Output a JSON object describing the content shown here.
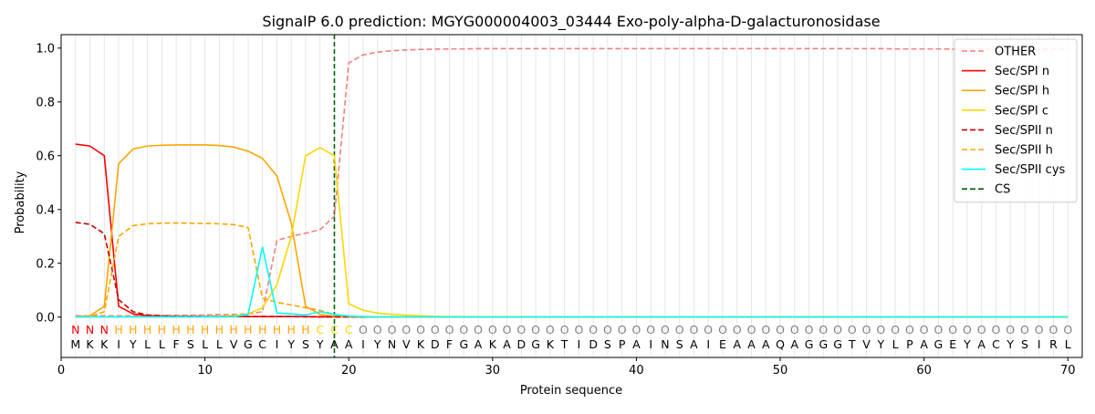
{
  "chart_data": {
    "type": "line",
    "title": "SignalP 6.0 prediction: MGYG000004003_03444 Exo-poly-alpha-D-galacturonosidase",
    "xlabel": "Protein sequence",
    "ylabel": "Probability",
    "xlim": [
      0,
      71
    ],
    "ylim": [
      -0.15,
      1.05
    ],
    "x_ticks": [
      0,
      10,
      20,
      30,
      40,
      50,
      60,
      70
    ],
    "y_ticks": [
      0.0,
      0.2,
      0.4,
      0.6,
      0.8,
      1.0
    ],
    "x_tick_labels": [
      "0",
      "10",
      "20",
      "30",
      "40",
      "50",
      "60",
      "70"
    ],
    "y_tick_labels": [
      "0.0",
      "0.2",
      "0.4",
      "0.6",
      "0.8",
      "1.0"
    ],
    "grid": "vertical lines at each residue",
    "legend_position": "top-right",
    "sequence": "MKKIYLLFSLLVGCIYSYAAIYNVKDFGAKADGKTIDSPAINSAIEAAAQAGGGTVYLPAGEYACYSIRL",
    "region_labels": "NNNHHHHHHHHHHHHHHCCCOOOOOOOOOOOOOOOOOOOOOOOOOOOOOOOOOOOOOOOOOOOOOOOOOOO",
    "region_colors": {
      "N": "#ff0000",
      "H": "#ffa500",
      "C": "#ffd700",
      "O": "#808080"
    },
    "cleavage_site": 19,
    "x": [
      1,
      2,
      3,
      4,
      5,
      6,
      7,
      8,
      9,
      10,
      11,
      12,
      13,
      14,
      15,
      16,
      17,
      18,
      19,
      20,
      21,
      22,
      23,
      24,
      25,
      26,
      27,
      28,
      29,
      30,
      31,
      32,
      33,
      34,
      35,
      36,
      37,
      38,
      39,
      40,
      41,
      42,
      43,
      44,
      45,
      46,
      47,
      48,
      49,
      50,
      51,
      52,
      53,
      54,
      55,
      56,
      57,
      58,
      59,
      60,
      61,
      62,
      63,
      64,
      65,
      66,
      67,
      68,
      69,
      70
    ],
    "series": [
      {
        "name": "OTHER",
        "color": "#f08080",
        "dash": "dashed",
        "values": [
          0.005,
          0.005,
          0.005,
          0.005,
          0.005,
          0.006,
          0.006,
          0.007,
          0.007,
          0.008,
          0.009,
          0.01,
          0.012,
          0.02,
          0.285,
          0.3,
          0.312,
          0.325,
          0.375,
          0.945,
          0.975,
          0.985,
          0.99,
          0.993,
          0.995,
          0.996,
          0.997,
          0.997,
          0.998,
          0.998,
          0.998,
          0.998,
          0.998,
          0.998,
          0.998,
          0.998,
          0.998,
          0.998,
          0.998,
          0.998,
          0.998,
          0.998,
          0.998,
          0.998,
          0.998,
          0.998,
          0.998,
          0.998,
          0.998,
          0.998,
          0.998,
          0.998,
          0.998,
          0.998,
          0.998,
          0.998,
          0.998,
          0.997,
          0.997,
          0.997,
          0.997,
          0.996,
          0.996,
          0.996,
          0.996,
          0.996,
          0.996,
          0.996,
          0.996,
          0.996
        ]
      },
      {
        "name": "Sec/SPI n",
        "color": "#ff0000",
        "dash": "solid",
        "values": [
          0.643,
          0.636,
          0.6,
          0.04,
          0.012,
          0.005,
          0.003,
          0.002,
          0.002,
          0.002,
          0.002,
          0.002,
          0.002,
          0.002,
          0.002,
          0.002,
          0.002,
          0.001,
          0.001,
          0.001,
          0,
          0,
          0,
          0,
          0,
          0,
          0,
          0,
          0,
          0,
          0,
          0,
          0,
          0,
          0,
          0,
          0,
          0,
          0,
          0,
          0,
          0,
          0,
          0,
          0,
          0,
          0,
          0,
          0,
          0,
          0,
          0,
          0,
          0,
          0,
          0,
          0,
          0,
          0,
          0,
          0,
          0,
          0,
          0,
          0,
          0,
          0,
          0,
          0,
          0
        ]
      },
      {
        "name": "Sec/SPI h",
        "color": "#ffa500",
        "dash": "solid",
        "values": [
          0.002,
          0.005,
          0.04,
          0.57,
          0.625,
          0.636,
          0.639,
          0.64,
          0.64,
          0.64,
          0.638,
          0.632,
          0.617,
          0.59,
          0.525,
          0.35,
          0.04,
          0.01,
          0.003,
          0.001,
          0.001,
          0,
          0,
          0,
          0,
          0,
          0,
          0,
          0,
          0,
          0,
          0,
          0,
          0,
          0,
          0,
          0,
          0,
          0,
          0,
          0,
          0,
          0,
          0,
          0,
          0,
          0,
          0,
          0,
          0,
          0,
          0,
          0,
          0,
          0,
          0,
          0,
          0,
          0,
          0,
          0,
          0,
          0,
          0,
          0,
          0,
          0,
          0,
          0,
          0
        ]
      },
      {
        "name": "Sec/SPI c",
        "color": "#ffd700",
        "dash": "solid",
        "values": [
          0.001,
          0.001,
          0.001,
          0.001,
          0.001,
          0.001,
          0.001,
          0.001,
          0.001,
          0.002,
          0.003,
          0.005,
          0.012,
          0.035,
          0.12,
          0.3,
          0.6,
          0.63,
          0.6,
          0.05,
          0.025,
          0.015,
          0.01,
          0.007,
          0.005,
          0.003,
          0.002,
          0.002,
          0.001,
          0.001,
          0.001,
          0.001,
          0,
          0,
          0,
          0,
          0,
          0,
          0,
          0,
          0,
          0,
          0,
          0,
          0,
          0,
          0,
          0,
          0,
          0,
          0,
          0,
          0,
          0,
          0,
          0,
          0,
          0,
          0,
          0,
          0,
          0,
          0,
          0,
          0,
          0,
          0,
          0,
          0,
          0
        ]
      },
      {
        "name": "Sec/SPII n",
        "color": "#cc0000",
        "dash": "dashed",
        "values": [
          0.352,
          0.345,
          0.31,
          0.065,
          0.02,
          0.008,
          0.005,
          0.003,
          0.003,
          0.002,
          0.002,
          0.002,
          0.002,
          0.002,
          0.002,
          0.002,
          0.001,
          0.001,
          0.001,
          0.001,
          0,
          0,
          0,
          0,
          0,
          0,
          0,
          0,
          0,
          0,
          0,
          0,
          0,
          0,
          0,
          0,
          0,
          0,
          0,
          0,
          0,
          0,
          0,
          0,
          0,
          0,
          0,
          0,
          0,
          0,
          0,
          0,
          0,
          0,
          0,
          0,
          0,
          0,
          0,
          0,
          0,
          0,
          0,
          0,
          0,
          0,
          0,
          0,
          0,
          0
        ]
      },
      {
        "name": "Sec/SPII h",
        "color": "#ffa500",
        "dash": "dashed",
        "values": [
          0.001,
          0.002,
          0.02,
          0.3,
          0.34,
          0.347,
          0.349,
          0.35,
          0.349,
          0.348,
          0.347,
          0.344,
          0.333,
          0.07,
          0.055,
          0.045,
          0.035,
          0.025,
          0.01,
          0.003,
          0.001,
          0,
          0,
          0,
          0,
          0,
          0,
          0,
          0,
          0,
          0,
          0,
          0,
          0,
          0,
          0,
          0,
          0,
          0,
          0,
          0,
          0,
          0,
          0,
          0,
          0,
          0,
          0,
          0,
          0,
          0,
          0,
          0,
          0,
          0,
          0,
          0,
          0,
          0,
          0,
          0,
          0,
          0,
          0,
          0,
          0,
          0,
          0,
          0,
          0
        ]
      },
      {
        "name": "Sec/SPII cys",
        "color": "#00ffff",
        "dash": "solid",
        "values": [
          0.001,
          0.001,
          0.001,
          0.001,
          0.001,
          0.001,
          0.001,
          0.001,
          0.001,
          0.001,
          0.001,
          0.001,
          0.01,
          0.26,
          0.015,
          0.012,
          0.008,
          0.02,
          0.01,
          0.004,
          0.002,
          0.001,
          0.001,
          0.001,
          0.001,
          0.001,
          0.001,
          0.001,
          0.001,
          0.001,
          0.001,
          0.001,
          0.001,
          0.001,
          0.001,
          0.001,
          0.001,
          0.001,
          0.001,
          0.001,
          0.001,
          0.001,
          0.001,
          0.001,
          0.001,
          0.001,
          0.001,
          0.001,
          0.001,
          0.001,
          0.001,
          0.001,
          0.001,
          0.001,
          0.001,
          0.001,
          0.001,
          0.001,
          0.001,
          0.001,
          0.001,
          0.001,
          0.001,
          0.001,
          0.001,
          0.001,
          0.001,
          0.001,
          0.001,
          0.001
        ]
      }
    ],
    "cs_legend": {
      "name": "CS",
      "color": "#006400",
      "dash": "dashed"
    }
  }
}
